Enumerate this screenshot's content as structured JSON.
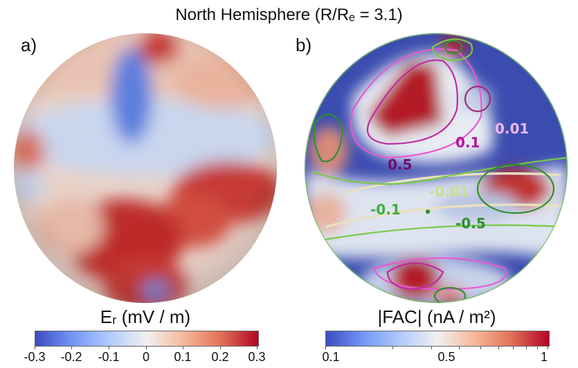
{
  "title": "North Hemisphere (R/Rₑ = 3.1)",
  "panels": {
    "a": {
      "label": "a)",
      "colorbar": {
        "title": "Eᵣ (mV / m)",
        "ticks": [
          "-0.3",
          "-0.2",
          "-0.1",
          "0",
          "0.1",
          "0.2",
          "0.3"
        ],
        "colors": [
          "#3b4cc0",
          "#7396f5",
          "#b0cbfc",
          "#f1f0ef",
          "#f6b899",
          "#e07157",
          "#b40426"
        ]
      }
    },
    "b": {
      "label": "b)",
      "contour_labels": [
        "0.01",
        "0.1",
        "0.5",
        "-0.01",
        "-0.1",
        "-0.5"
      ],
      "colorbar": {
        "title": "|FAC| (nA / m²)",
        "ticks": [
          "0.1",
          "0.5",
          "1"
        ],
        "colors": [
          "#3b4cc0",
          "#7396f5",
          "#b0cbfc",
          "#f1f0ef",
          "#f6b899",
          "#e07157",
          "#b40426"
        ]
      }
    }
  }
}
